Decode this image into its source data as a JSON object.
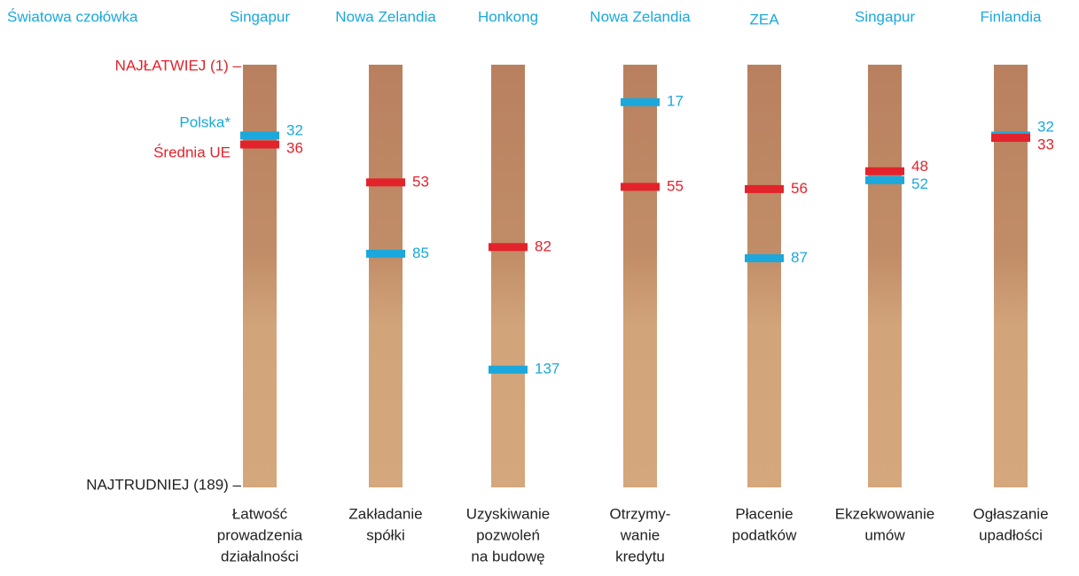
{
  "chart_data": {
    "type": "rank-columns",
    "top_label": "Światowa czołówka",
    "leaders": [
      "Singapur",
      "Nowa Zelandia",
      "Honkong",
      "Nowa Zelandia",
      "ZEA",
      "Singapur",
      "Finlandia"
    ],
    "categories": [
      [
        "Łatwość",
        "prowadzenia",
        "działalności"
      ],
      [
        "Zakładanie",
        "spółki"
      ],
      [
        "Uzyskiwanie",
        "pozwoleń",
        "na budowę"
      ],
      [
        "Otrzymy-",
        "wanie",
        "kredytu"
      ],
      [
        "Płacenie",
        "podatków"
      ],
      [
        "Ekzekwowanie",
        "umów"
      ],
      [
        "Ogłaszanie",
        "upadłości"
      ]
    ],
    "series": [
      {
        "name": "Polska*",
        "color": "#1ba8dc",
        "values": [
          32,
          85,
          137,
          17,
          87,
          52,
          32
        ]
      },
      {
        "name": "Średnia UE",
        "color": "#e3232b",
        "values": [
          36,
          53,
          82,
          55,
          56,
          48,
          33
        ]
      }
    ],
    "ylim": [
      1,
      189
    ],
    "yticks": [
      {
        "value": 1,
        "label": "NAJŁATWIEJ (1) –"
      },
      {
        "value": 189,
        "label": "NAJTRUDNIEJ (189) –"
      }
    ],
    "invert_y": true
  }
}
